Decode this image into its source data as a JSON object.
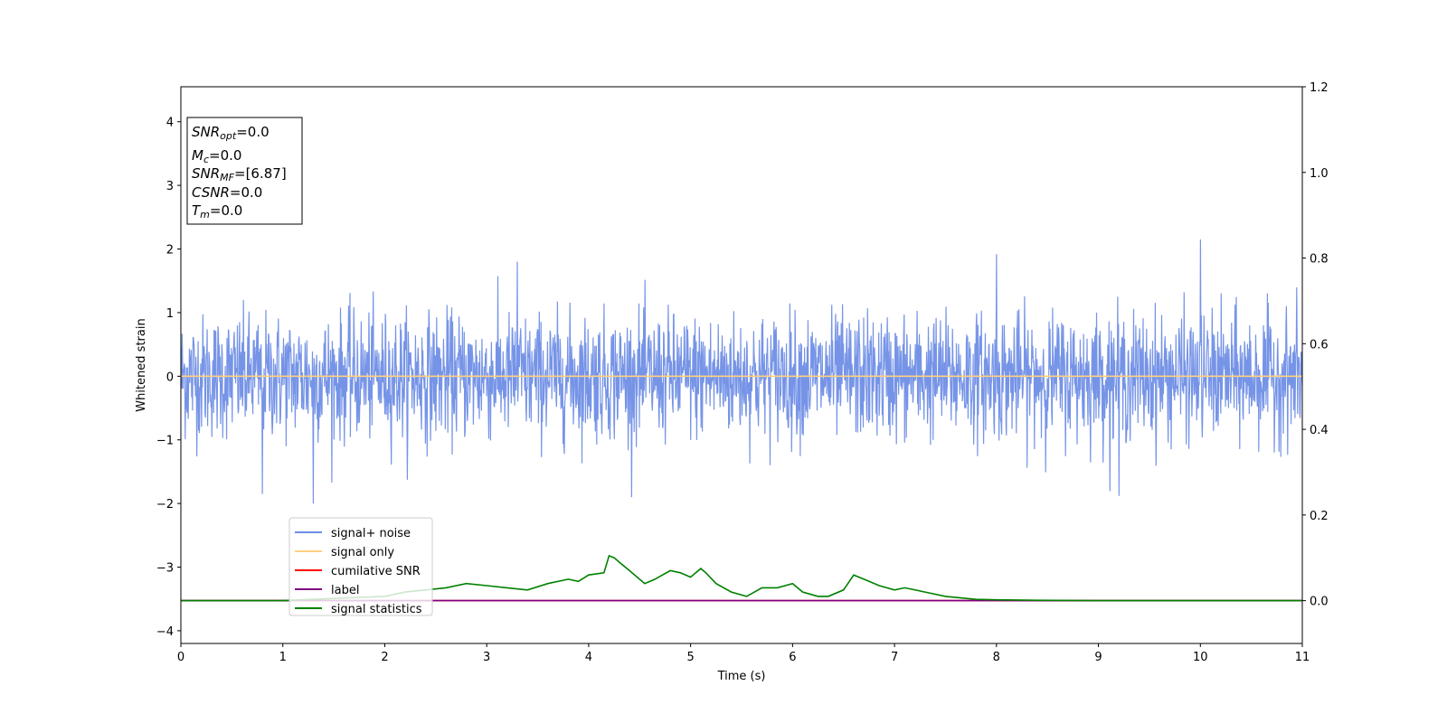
{
  "chart_data": {
    "type": "line",
    "xlabel": "Time (s)",
    "ylabel": "Whitened strain",
    "xlim": [
      0,
      11
    ],
    "ylim": [
      -4.2,
      4.55
    ],
    "y2lim": [
      -0.1,
      1.2
    ],
    "grid": false,
    "legend_position": "lower-left",
    "x_ticks": [
      "0",
      "1",
      "2",
      "3",
      "4",
      "5",
      "6",
      "7",
      "8",
      "9",
      "10",
      "11"
    ],
    "y_ticks": [
      "−4",
      "−3",
      "−2",
      "−1",
      "0",
      "1",
      "2",
      "3",
      "4"
    ],
    "y2_ticks": [
      "0.0",
      "0.2",
      "0.4",
      "0.6",
      "0.8",
      "1.0",
      "1.2"
    ],
    "info_box": {
      "snr_opt": "=0.0",
      "mc": "=0.0",
      "snr_mf": "=[6.87]",
      "csnr": "=0.0",
      "tm": "=0.0"
    },
    "series": [
      {
        "name": "signal+ noise",
        "color": "#6f8ee6",
        "axis": "left",
        "note": "dense noise roughly within ±1.2, peaks up to 2.15 at t≈10.0 and down to −2.0 at t≈1.3"
      },
      {
        "name": "signal only",
        "color": "#ffd080",
        "axis": "left",
        "x": [
          0,
          11
        ],
        "y": [
          0,
          0
        ]
      },
      {
        "name": "cumilative SNR",
        "color": "#ff0000",
        "axis": "right",
        "x": [
          0,
          11
        ],
        "y": [
          0,
          0
        ]
      },
      {
        "name": "label",
        "color": "#800080",
        "axis": "right",
        "x": [
          0,
          11
        ],
        "y": [
          0,
          0
        ]
      },
      {
        "name": "signal statistics",
        "color": "#008000",
        "axis": "right",
        "x": [
          0,
          0.5,
          1.0,
          1.5,
          2.0,
          2.2,
          2.4,
          2.6,
          2.8,
          3.0,
          3.2,
          3.4,
          3.6,
          3.8,
          3.9,
          4.0,
          4.15,
          4.2,
          4.25,
          4.3,
          4.4,
          4.55,
          4.65,
          4.8,
          4.9,
          5.0,
          5.1,
          5.15,
          5.25,
          5.4,
          5.55,
          5.7,
          5.85,
          6.0,
          6.1,
          6.25,
          6.35,
          6.5,
          6.6,
          6.7,
          6.85,
          7.0,
          7.1,
          7.3,
          7.5,
          7.8,
          8.0,
          8.3,
          9.0,
          10.0,
          11.0
        ],
        "y": [
          0.0,
          0.0,
          0.0,
          0.005,
          0.01,
          0.02,
          0.025,
          0.03,
          0.04,
          0.035,
          0.03,
          0.025,
          0.04,
          0.05,
          0.045,
          0.06,
          0.065,
          0.105,
          0.1,
          0.09,
          0.07,
          0.04,
          0.05,
          0.07,
          0.065,
          0.055,
          0.075,
          0.065,
          0.04,
          0.02,
          0.01,
          0.03,
          0.03,
          0.04,
          0.02,
          0.01,
          0.01,
          0.025,
          0.06,
          0.05,
          0.035,
          0.025,
          0.03,
          0.02,
          0.01,
          0.003,
          0.002,
          0.001,
          0.0,
          0.0,
          0.0
        ]
      }
    ]
  }
}
